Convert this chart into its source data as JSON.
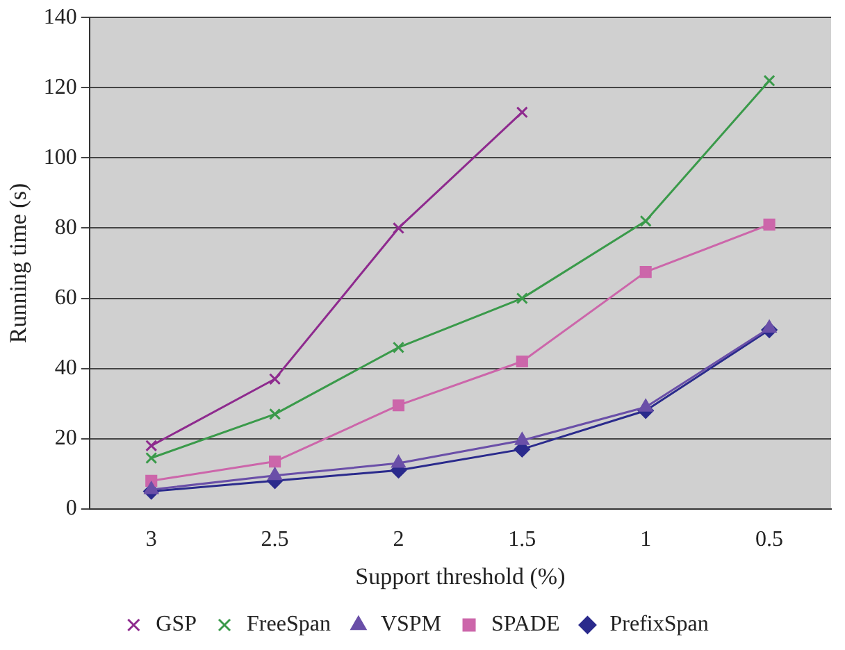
{
  "chart_data": {
    "type": "line",
    "xlabel": "Support threshold (%)",
    "ylabel": "Running time (s)",
    "categories": [
      "3",
      "2.5",
      "2",
      "1.5",
      "1",
      "0.5"
    ],
    "ylim": [
      0,
      140
    ],
    "yticks": [
      0,
      20,
      40,
      60,
      80,
      100,
      120,
      140
    ],
    "grid": "y",
    "legend": "bottom",
    "series": [
      {
        "name": "PrefixSpan",
        "color": "#2a2a8c",
        "marker": "diamond",
        "values": [
          5,
          8,
          11,
          17,
          28,
          51
        ]
      },
      {
        "name": "SPADE",
        "color": "#cc66aa",
        "marker": "square",
        "values": [
          8,
          13.5,
          29.5,
          42,
          67.5,
          81
        ]
      },
      {
        "name": "VSPM",
        "color": "#6a4fa8",
        "marker": "triangle",
        "values": [
          5.5,
          9.5,
          13,
          19.5,
          29,
          51.5
        ]
      },
      {
        "name": "FreeSpan",
        "color": "#3a9a4a",
        "marker": "cross",
        "values": [
          14.5,
          27,
          46,
          60,
          82,
          122
        ]
      },
      {
        "name": "GSP",
        "color": "#8e2a8e",
        "marker": "cross",
        "values": [
          18,
          37,
          80,
          113,
          null,
          null
        ]
      }
    ]
  }
}
